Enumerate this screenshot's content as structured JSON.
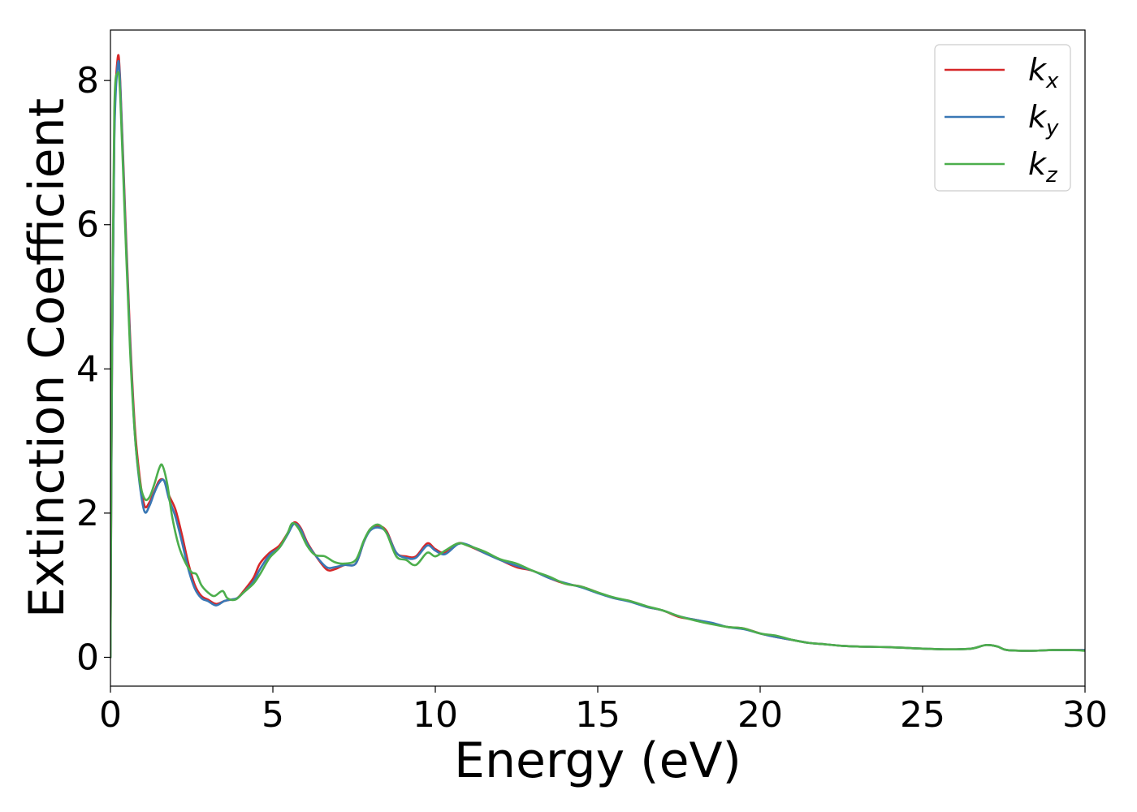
{
  "chart_data": {
    "type": "line",
    "title": "",
    "xlabel": "Energy (eV)",
    "ylabel": "Extinction Coefficient",
    "xlim": [
      0,
      30
    ],
    "ylim": [
      -0.4,
      8.7
    ],
    "xticks": [
      0,
      5,
      10,
      15,
      20,
      25,
      30
    ],
    "yticks": [
      0,
      2,
      4,
      6,
      8
    ],
    "grid": false,
    "legend_position": "top-right",
    "series": [
      {
        "name": "k_x",
        "label_main": "k",
        "label_sub": "x",
        "color": "#d62728",
        "points": [
          [
            0,
            0
          ],
          [
            0.05,
            4.2
          ],
          [
            0.12,
            7.3
          ],
          [
            0.22,
            8.3
          ],
          [
            0.3,
            8.0
          ],
          [
            0.45,
            6.2
          ],
          [
            0.6,
            4.5
          ],
          [
            0.75,
            3.2
          ],
          [
            0.9,
            2.5
          ],
          [
            1.05,
            2.1
          ],
          [
            1.2,
            2.15
          ],
          [
            1.35,
            2.3
          ],
          [
            1.5,
            2.45
          ],
          [
            1.65,
            2.45
          ],
          [
            1.8,
            2.25
          ],
          [
            2.0,
            2.05
          ],
          [
            2.2,
            1.7
          ],
          [
            2.4,
            1.3
          ],
          [
            2.6,
            1.0
          ],
          [
            2.8,
            0.85
          ],
          [
            3.0,
            0.8
          ],
          [
            3.25,
            0.74
          ],
          [
            3.5,
            0.78
          ],
          [
            3.7,
            0.8
          ],
          [
            3.9,
            0.82
          ],
          [
            4.1,
            0.92
          ],
          [
            4.4,
            1.1
          ],
          [
            4.6,
            1.3
          ],
          [
            4.9,
            1.45
          ],
          [
            5.2,
            1.55
          ],
          [
            5.45,
            1.72
          ],
          [
            5.65,
            1.87
          ],
          [
            5.85,
            1.8
          ],
          [
            6.05,
            1.6
          ],
          [
            6.3,
            1.42
          ],
          [
            6.65,
            1.22
          ],
          [
            6.9,
            1.22
          ],
          [
            7.2,
            1.28
          ],
          [
            7.55,
            1.3
          ],
          [
            7.8,
            1.6
          ],
          [
            8.0,
            1.78
          ],
          [
            8.25,
            1.82
          ],
          [
            8.5,
            1.75
          ],
          [
            8.8,
            1.45
          ],
          [
            9.1,
            1.4
          ],
          [
            9.4,
            1.4
          ],
          [
            9.75,
            1.58
          ],
          [
            10.0,
            1.5
          ],
          [
            10.3,
            1.45
          ],
          [
            10.7,
            1.58
          ],
          [
            11.0,
            1.55
          ],
          [
            11.5,
            1.45
          ],
          [
            12.0,
            1.35
          ],
          [
            12.5,
            1.25
          ],
          [
            13.0,
            1.2
          ],
          [
            13.5,
            1.1
          ],
          [
            14.0,
            1.02
          ],
          [
            14.5,
            0.98
          ],
          [
            15.0,
            0.9
          ],
          [
            15.5,
            0.82
          ],
          [
            16.0,
            0.78
          ],
          [
            16.5,
            0.7
          ],
          [
            17.0,
            0.65
          ],
          [
            17.5,
            0.56
          ],
          [
            18.0,
            0.52
          ],
          [
            18.5,
            0.47
          ],
          [
            19.0,
            0.42
          ],
          [
            19.5,
            0.4
          ],
          [
            20.0,
            0.33
          ],
          [
            20.5,
            0.28
          ],
          [
            21.0,
            0.24
          ],
          [
            21.5,
            0.2
          ],
          [
            22.0,
            0.18
          ],
          [
            22.5,
            0.16
          ],
          [
            23.0,
            0.15
          ],
          [
            24.0,
            0.14
          ],
          [
            25.0,
            0.12
          ],
          [
            25.8,
            0.11
          ],
          [
            26.5,
            0.12
          ],
          [
            26.95,
            0.17
          ],
          [
            27.3,
            0.15
          ],
          [
            27.6,
            0.1
          ],
          [
            28.3,
            0.09
          ],
          [
            29.0,
            0.1
          ],
          [
            29.6,
            0.1
          ],
          [
            30.0,
            0.1
          ]
        ]
      },
      {
        "name": "k_y",
        "label_main": "k",
        "label_sub": "y",
        "color": "#3a78b5",
        "points": [
          [
            0,
            0
          ],
          [
            0.05,
            4.1
          ],
          [
            0.12,
            7.2
          ],
          [
            0.22,
            8.2
          ],
          [
            0.3,
            7.95
          ],
          [
            0.45,
            6.1
          ],
          [
            0.6,
            4.4
          ],
          [
            0.75,
            3.1
          ],
          [
            0.9,
            2.4
          ],
          [
            1.05,
            2.02
          ],
          [
            1.2,
            2.1
          ],
          [
            1.35,
            2.28
          ],
          [
            1.5,
            2.42
          ],
          [
            1.65,
            2.45
          ],
          [
            1.8,
            2.2
          ],
          [
            2.0,
            1.95
          ],
          [
            2.2,
            1.6
          ],
          [
            2.4,
            1.22
          ],
          [
            2.6,
            0.95
          ],
          [
            2.8,
            0.82
          ],
          [
            3.0,
            0.78
          ],
          [
            3.25,
            0.72
          ],
          [
            3.5,
            0.78
          ],
          [
            3.7,
            0.8
          ],
          [
            3.9,
            0.82
          ],
          [
            4.1,
            0.9
          ],
          [
            4.4,
            1.05
          ],
          [
            4.6,
            1.22
          ],
          [
            4.9,
            1.42
          ],
          [
            5.2,
            1.52
          ],
          [
            5.45,
            1.7
          ],
          [
            5.65,
            1.85
          ],
          [
            5.85,
            1.78
          ],
          [
            6.05,
            1.58
          ],
          [
            6.3,
            1.42
          ],
          [
            6.65,
            1.25
          ],
          [
            6.9,
            1.25
          ],
          [
            7.2,
            1.28
          ],
          [
            7.55,
            1.3
          ],
          [
            7.8,
            1.6
          ],
          [
            8.0,
            1.76
          ],
          [
            8.25,
            1.8
          ],
          [
            8.5,
            1.73
          ],
          [
            8.8,
            1.45
          ],
          [
            9.1,
            1.38
          ],
          [
            9.4,
            1.38
          ],
          [
            9.75,
            1.55
          ],
          [
            10.0,
            1.48
          ],
          [
            10.3,
            1.43
          ],
          [
            10.7,
            1.57
          ],
          [
            11.0,
            1.56
          ],
          [
            11.5,
            1.45
          ],
          [
            12.0,
            1.35
          ],
          [
            12.5,
            1.27
          ],
          [
            13.0,
            1.2
          ],
          [
            13.5,
            1.1
          ],
          [
            14.0,
            1.03
          ],
          [
            14.5,
            0.97
          ],
          [
            15.0,
            0.89
          ],
          [
            15.5,
            0.82
          ],
          [
            16.0,
            0.77
          ],
          [
            16.5,
            0.7
          ],
          [
            17.0,
            0.65
          ],
          [
            17.5,
            0.57
          ],
          [
            18.0,
            0.52
          ],
          [
            18.5,
            0.48
          ],
          [
            19.0,
            0.42
          ],
          [
            19.5,
            0.39
          ],
          [
            20.0,
            0.33
          ],
          [
            20.5,
            0.28
          ],
          [
            21.0,
            0.24
          ],
          [
            21.5,
            0.2
          ],
          [
            22.0,
            0.18
          ],
          [
            22.5,
            0.16
          ],
          [
            23.0,
            0.15
          ],
          [
            24.0,
            0.14
          ],
          [
            25.0,
            0.12
          ],
          [
            25.8,
            0.11
          ],
          [
            26.5,
            0.12
          ],
          [
            26.95,
            0.17
          ],
          [
            27.3,
            0.15
          ],
          [
            27.6,
            0.1
          ],
          [
            28.3,
            0.09
          ],
          [
            29.0,
            0.1
          ],
          [
            29.6,
            0.1
          ],
          [
            30.0,
            0.1
          ]
        ]
      },
      {
        "name": "k_z",
        "label_main": "k",
        "label_sub": "z",
        "color": "#4cae4c",
        "points": [
          [
            0,
            0
          ],
          [
            0.05,
            4.6
          ],
          [
            0.12,
            7.6
          ],
          [
            0.22,
            8.1
          ],
          [
            0.3,
            7.8
          ],
          [
            0.45,
            6.0
          ],
          [
            0.6,
            4.3
          ],
          [
            0.75,
            3.1
          ],
          [
            0.9,
            2.45
          ],
          [
            1.05,
            2.2
          ],
          [
            1.2,
            2.22
          ],
          [
            1.35,
            2.4
          ],
          [
            1.5,
            2.62
          ],
          [
            1.6,
            2.66
          ],
          [
            1.75,
            2.4
          ],
          [
            1.9,
            1.95
          ],
          [
            2.1,
            1.55
          ],
          [
            2.3,
            1.32
          ],
          [
            2.5,
            1.18
          ],
          [
            2.65,
            1.15
          ],
          [
            2.8,
            1.0
          ],
          [
            3.0,
            0.9
          ],
          [
            3.2,
            0.85
          ],
          [
            3.45,
            0.92
          ],
          [
            3.6,
            0.82
          ],
          [
            3.85,
            0.8
          ],
          [
            4.1,
            0.9
          ],
          [
            4.4,
            1.02
          ],
          [
            4.6,
            1.15
          ],
          [
            4.9,
            1.38
          ],
          [
            5.2,
            1.52
          ],
          [
            5.45,
            1.72
          ],
          [
            5.6,
            1.86
          ],
          [
            5.8,
            1.78
          ],
          [
            6.05,
            1.55
          ],
          [
            6.3,
            1.42
          ],
          [
            6.6,
            1.4
          ],
          [
            6.9,
            1.32
          ],
          [
            7.2,
            1.3
          ],
          [
            7.55,
            1.35
          ],
          [
            7.8,
            1.62
          ],
          [
            8.0,
            1.78
          ],
          [
            8.25,
            1.84
          ],
          [
            8.5,
            1.72
          ],
          [
            8.8,
            1.4
          ],
          [
            9.1,
            1.35
          ],
          [
            9.4,
            1.28
          ],
          [
            9.75,
            1.45
          ],
          [
            10.0,
            1.4
          ],
          [
            10.3,
            1.48
          ],
          [
            10.7,
            1.58
          ],
          [
            11.0,
            1.55
          ],
          [
            11.5,
            1.47
          ],
          [
            12.0,
            1.36
          ],
          [
            12.5,
            1.3
          ],
          [
            13.0,
            1.2
          ],
          [
            13.5,
            1.12
          ],
          [
            14.0,
            1.02
          ],
          [
            14.5,
            0.98
          ],
          [
            15.0,
            0.9
          ],
          [
            15.5,
            0.83
          ],
          [
            16.0,
            0.78
          ],
          [
            16.5,
            0.71
          ],
          [
            17.0,
            0.65
          ],
          [
            17.5,
            0.57
          ],
          [
            18.0,
            0.51
          ],
          [
            18.5,
            0.46
          ],
          [
            19.0,
            0.42
          ],
          [
            19.5,
            0.4
          ],
          [
            20.0,
            0.33
          ],
          [
            20.5,
            0.3
          ],
          [
            21.0,
            0.24
          ],
          [
            21.5,
            0.2
          ],
          [
            22.0,
            0.18
          ],
          [
            22.5,
            0.16
          ],
          [
            23.0,
            0.15
          ],
          [
            24.0,
            0.14
          ],
          [
            25.0,
            0.12
          ],
          [
            25.8,
            0.11
          ],
          [
            26.5,
            0.12
          ],
          [
            26.95,
            0.17
          ],
          [
            27.3,
            0.15
          ],
          [
            27.6,
            0.1
          ],
          [
            28.3,
            0.09
          ],
          [
            29.0,
            0.1
          ],
          [
            29.6,
            0.1
          ],
          [
            30.0,
            0.09
          ]
        ]
      }
    ]
  }
}
